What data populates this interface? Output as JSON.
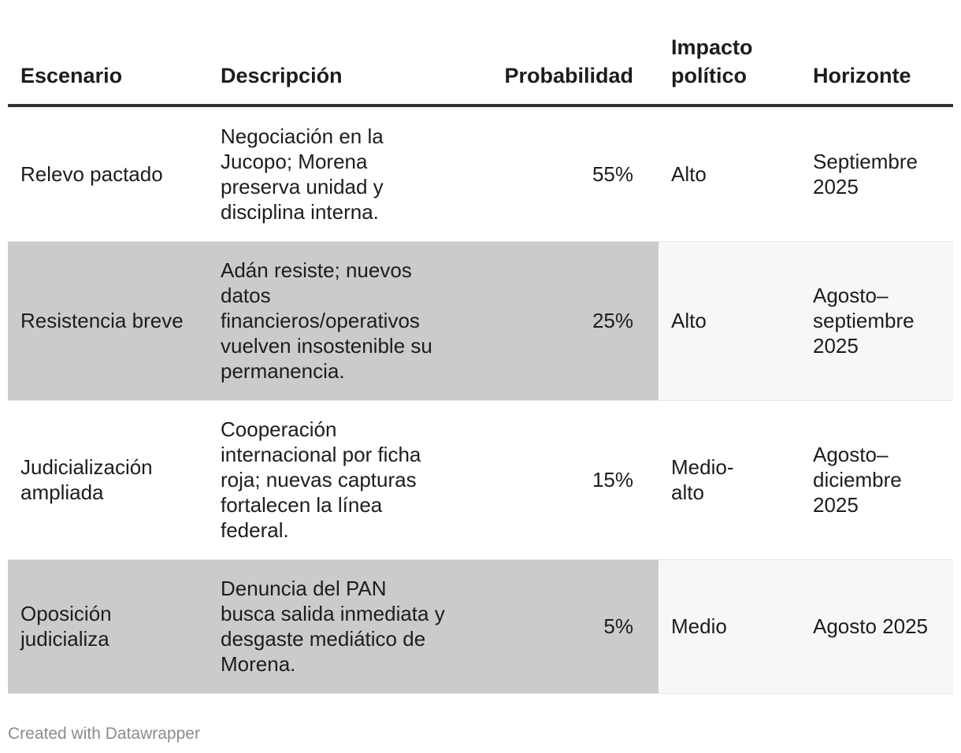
{
  "chart_data": {
    "type": "table",
    "columns": [
      "Escenario",
      "Descripción",
      "Probabilidad",
      "Impacto político",
      "Horizonte"
    ],
    "rows": [
      {
        "escenario": "Relevo pactado",
        "descripcion": "Negociación en la Jucopo; Morena preserva unidad y disciplina interna.",
        "probabilidad": "55%",
        "impacto": "Alto",
        "horizonte": "Septiembre 2025"
      },
      {
        "escenario": "Resistencia breve",
        "descripcion": "Adán resiste; nuevos datos financieros/operativos vuelven insostenible su permanencia.",
        "probabilidad": "25%",
        "impacto": "Alto",
        "horizonte": "Agosto–septiembre 2025"
      },
      {
        "escenario": "Judicialización ampliada",
        "descripcion": "Cooperación internacional por ficha roja; nuevas capturas fortalecen la línea federal.",
        "probabilidad": "15%",
        "impacto": "Medio-alto",
        "horizonte": "Agosto–diciembre 2025"
      },
      {
        "escenario": "Oposición judicializa",
        "descripcion": "Denuncia del PAN busca salida inmediata y desgaste mediático de Morena.",
        "probabilidad": "5%",
        "impacto": "Medio",
        "horizonte": "Agosto 2025"
      }
    ],
    "probability_values": [
      55,
      25,
      15,
      5
    ]
  },
  "footer": "Created with Datawrapper",
  "colors": {
    "highlight": "#cbcbcb",
    "row_shade": "#f7f7f7",
    "header_rule": "#333333",
    "footer_text": "#8c8c8c"
  }
}
